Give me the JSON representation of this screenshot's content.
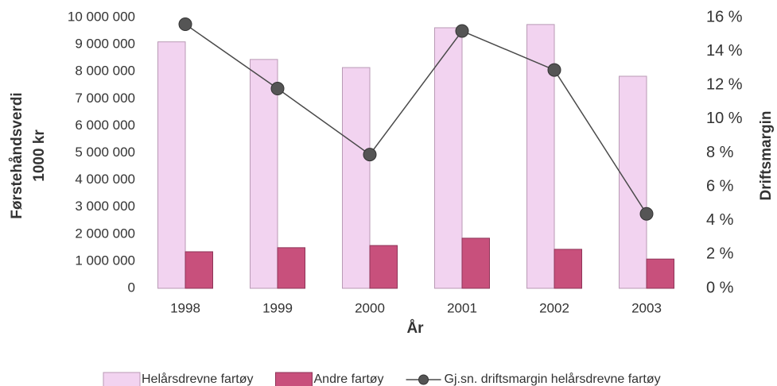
{
  "chart_data": {
    "type": "bar",
    "categories": [
      "1998",
      "1999",
      "2000",
      "2001",
      "2002",
      "2003"
    ],
    "series": [
      {
        "name": "Helårsdrevne fartøy",
        "color": "#f2d3f0",
        "type": "bar",
        "values": [
          9100000,
          8450000,
          8150000,
          9620000,
          9740000,
          7830000
        ]
      },
      {
        "name": "Andre fartøy",
        "color": "#c8507c",
        "type": "bar",
        "values": [
          1350000,
          1500000,
          1580000,
          1850000,
          1440000,
          1080000
        ]
      },
      {
        "name": "Gj.sn. driftsmargin helårsdrevne fartøy",
        "color": "#4a4a4a",
        "type": "line",
        "axis": "y2",
        "values": [
          15.6,
          11.8,
          7.9,
          15.2,
          12.9,
          4.4
        ]
      }
    ],
    "ylabel": [
      "Førstehåndsverdi",
      "1000 kr"
    ],
    "y2label": "Driftsmargin",
    "xlabel": "År",
    "ylim": [
      0,
      10000000
    ],
    "yticks": [
      0,
      {
        "value": 1000000,
        "label": "1 000 000"
      },
      {
        "value": 2000000,
        "label": "2 000 000"
      },
      {
        "value": 3000000,
        "label": "3 000 000"
      },
      {
        "value": 4000000,
        "label": "4 000 000"
      },
      {
        "value": 5000000,
        "label": "5 000 000"
      },
      {
        "value": 6000000,
        "label": "6 000 000"
      },
      {
        "value": 7000000,
        "label": "7 000 000"
      },
      {
        "value": 8000000,
        "label": "8 000 000"
      },
      {
        "value": 9000000,
        "label": "9 000 000"
      },
      {
        "value": 10000000,
        "label": "10 000 000"
      }
    ],
    "y2lim": [
      0,
      16
    ],
    "y2ticks": [
      {
        "value": 0,
        "label": "0 %"
      },
      {
        "value": 2,
        "label": "2 %"
      },
      {
        "value": 4,
        "label": "4 %"
      },
      {
        "value": 6,
        "label": "6 %"
      },
      {
        "value": 8,
        "label": "8 %"
      },
      {
        "value": 10,
        "label": "10 %"
      },
      {
        "value": 12,
        "label": "12 %"
      },
      {
        "value": 14,
        "label": "14 %"
      },
      {
        "value": 16,
        "label": "16 %"
      }
    ],
    "legend": "bottom"
  }
}
